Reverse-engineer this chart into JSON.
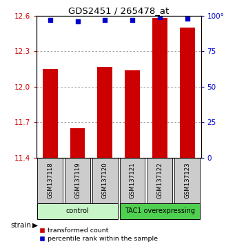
{
  "title": "GDS2451 / 265478_at",
  "samples": [
    "GSM137118",
    "GSM137119",
    "GSM137120",
    "GSM137121",
    "GSM137122",
    "GSM137123"
  ],
  "red_values": [
    12.15,
    11.65,
    12.17,
    12.14,
    12.58,
    12.5
  ],
  "blue_percentile_values": [
    97,
    96,
    97,
    97,
    99,
    98
  ],
  "ylim_left": [
    11.4,
    12.6
  ],
  "ylim_right": [
    0,
    100
  ],
  "yticks_left": [
    11.4,
    11.7,
    12.0,
    12.3,
    12.6
  ],
  "yticks_right": [
    0,
    25,
    50,
    75,
    100
  ],
  "ytick_right_labels": [
    "0",
    "25",
    "50",
    "75",
    "100°"
  ],
  "groups": [
    {
      "label": "control",
      "indices": [
        0,
        1,
        2
      ],
      "color": "#c8f5c8"
    },
    {
      "label": "TAC1 overexpressing",
      "indices": [
        3,
        4,
        5
      ],
      "color": "#50d050"
    }
  ],
  "bar_color": "#cc0000",
  "dot_color": "#0000cc",
  "bar_width": 0.55,
  "left_tick_color": "#cc0000",
  "right_tick_color": "#0000cc",
  "grid_color": "#888888",
  "bg_color": "#ffffff",
  "sample_box_color": "#cccccc",
  "legend_red_label": "transformed count",
  "legend_blue_label": "percentile rank within the sample",
  "strain_label": "strain"
}
